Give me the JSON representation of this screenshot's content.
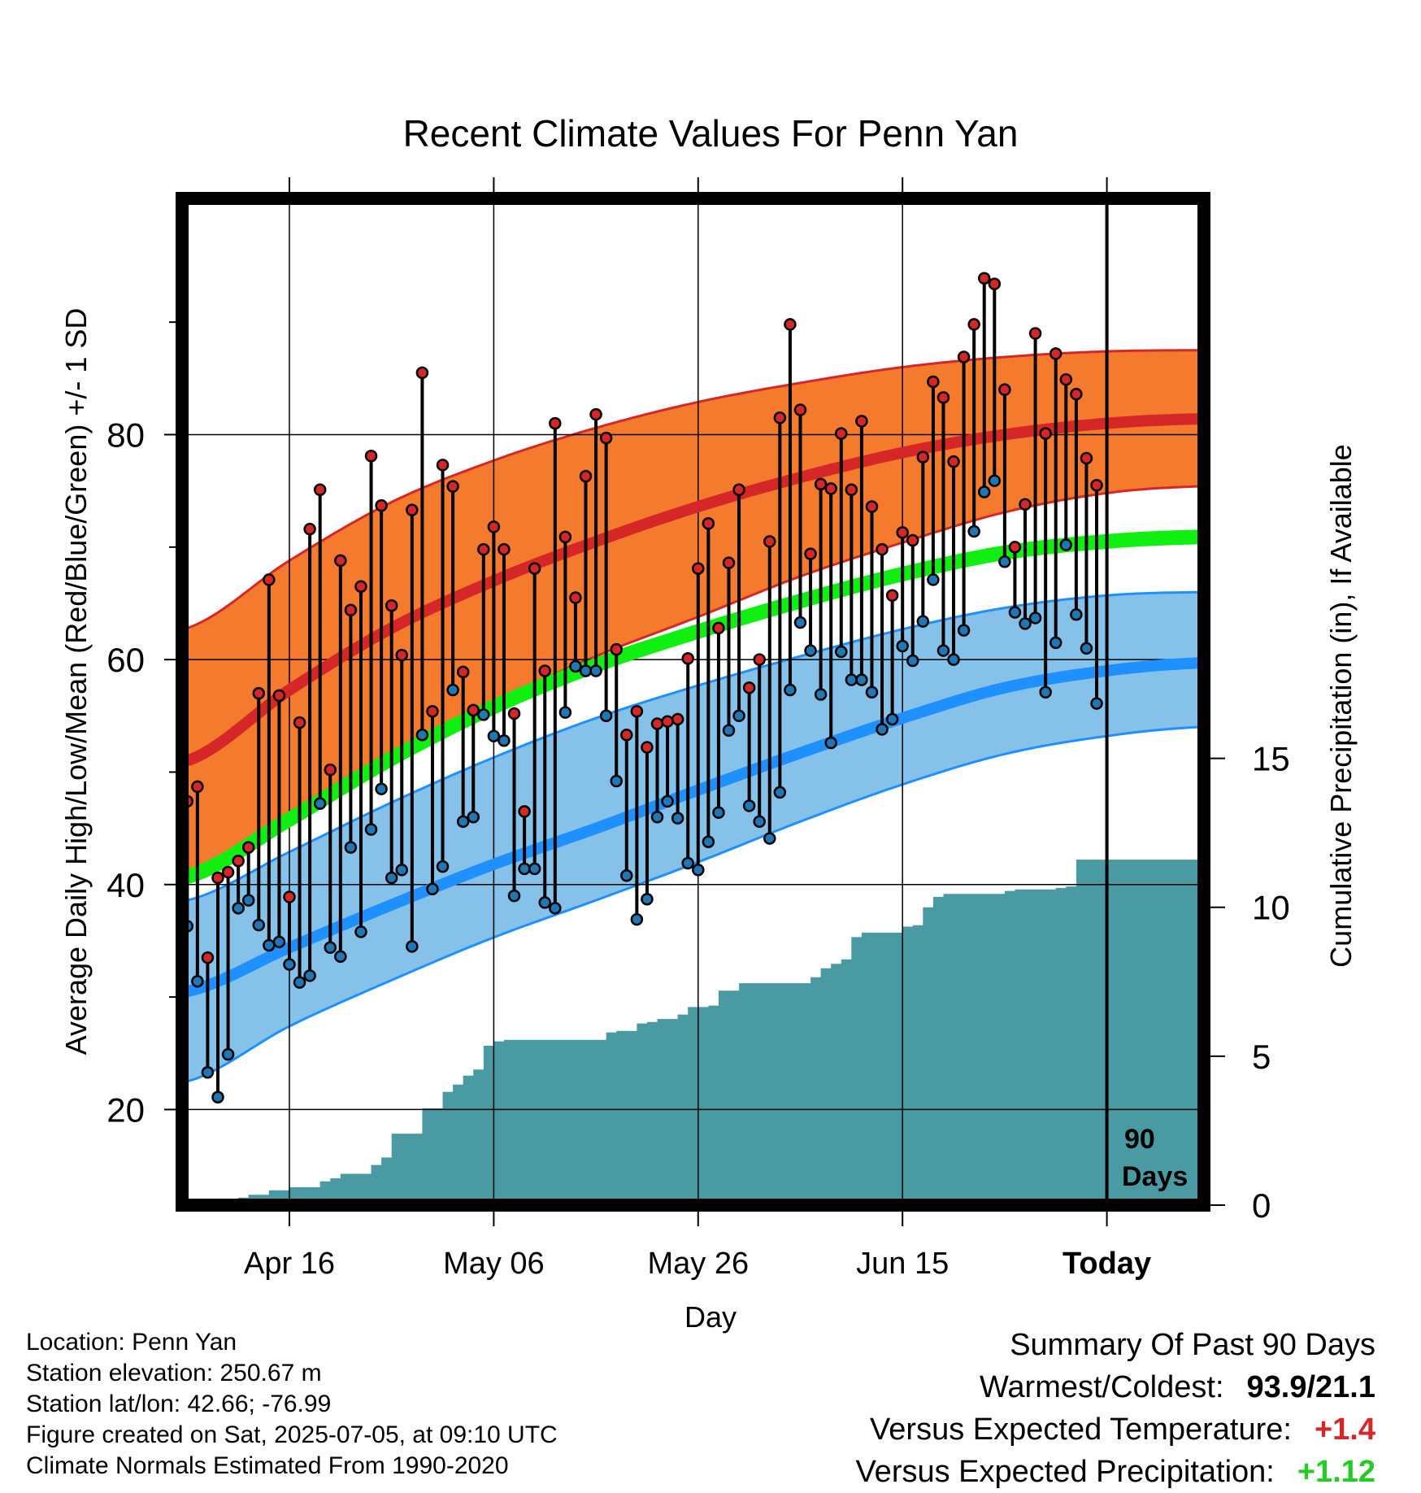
{
  "chart_data": {
    "type": "line",
    "title": "Recent Climate Values For Penn Yan",
    "xlabel": "Day",
    "ylabel": "Average Daily High/Low/Mean (Red/Blue/Green) +/- 1 SD",
    "y2label": "Cumulative Precipitation (in), If Available",
    "ylim": [
      11.5,
      101.0
    ],
    "y2lim": [
      0,
      33.8
    ],
    "y_ticks": [
      "20",
      "40",
      "60",
      "80"
    ],
    "y2_ticks": [
      "0",
      "5",
      "10",
      "15"
    ],
    "x_tick_labels": [
      "Apr 16",
      "May 06",
      "May 26",
      "Jun 15",
      "Today"
    ],
    "x_tick_days": [
      10,
      30,
      50,
      70,
      90
    ],
    "xlim": [
      -0.5,
      99.5
    ],
    "grid": true,
    "today_marker_label": [
      "90",
      "Days"
    ],
    "normals": {
      "days": [
        0,
        10,
        20,
        30,
        40,
        50,
        60,
        70,
        80,
        90,
        99
      ],
      "high_mean": [
        51.0,
        57.3,
        62.8,
        67.0,
        70.5,
        73.6,
        76.2,
        78.4,
        80.0,
        81.0,
        81.4
      ],
      "high_upper": [
        62.8,
        68.8,
        74.0,
        77.7,
        80.6,
        82.9,
        84.6,
        86.0,
        86.9,
        87.4,
        87.5
      ],
      "high_lower": [
        41.0,
        46.4,
        51.6,
        56.2,
        60.3,
        63.8,
        67.4,
        70.4,
        73.1,
        74.8,
        75.4
      ],
      "mean": [
        40.7,
        45.8,
        51.2,
        55.8,
        59.5,
        62.5,
        65.2,
        67.6,
        69.5,
        70.5,
        70.9
      ],
      "low_mean": [
        30.5,
        34.4,
        38.2,
        41.8,
        45.0,
        48.4,
        51.7,
        54.8,
        57.5,
        59.0,
        59.7
      ],
      "low_upper": [
        38.6,
        42.9,
        47.3,
        51.3,
        54.8,
        57.7,
        60.3,
        62.7,
        64.6,
        65.7,
        66.0
      ],
      "low_lower": [
        22.5,
        27.4,
        31.5,
        35.3,
        38.6,
        42.0,
        45.6,
        48.9,
        51.6,
        53.2,
        54.0
      ]
    },
    "series": [
      {
        "name": "High",
        "color": "#d62728",
        "values": [
          47.4,
          48.7,
          33.5,
          40.6,
          41.1,
          42.1,
          43.3,
          57.0,
          67.1,
          56.8,
          38.9,
          54.4,
          71.6,
          75.1,
          50.2,
          68.8,
          64.4,
          66.5,
          78.1,
          73.7,
          64.8,
          60.4,
          73.3,
          85.5,
          55.4,
          77.3,
          75.4,
          58.9,
          55.5,
          69.8,
          71.8,
          69.8,
          55.2,
          46.5,
          68.1,
          59.0,
          81.0,
          70.9,
          65.5,
          76.3,
          81.8,
          79.7,
          60.9,
          53.3,
          55.4,
          52.2,
          54.3,
          54.5,
          54.7,
          60.1,
          68.1,
          72.1,
          62.8,
          68.6,
          75.1,
          57.5,
          60.0,
          70.5,
          81.5,
          89.8,
          82.2,
          69.4,
          75.6,
          75.2,
          80.1,
          75.1,
          81.2,
          73.6,
          69.8,
          65.7,
          71.3,
          70.6,
          78.0,
          84.7,
          83.3,
          77.6,
          86.9,
          89.8,
          93.9,
          93.4,
          84.0,
          70.0,
          73.8,
          89.0,
          80.1,
          87.2,
          84.9,
          83.6,
          77.9,
          75.5
        ]
      },
      {
        "name": "Low",
        "color": "#1f77b4",
        "values": [
          36.3,
          31.4,
          23.3,
          21.1,
          24.9,
          37.9,
          38.6,
          36.4,
          34.6,
          34.9,
          32.9,
          31.3,
          31.9,
          47.2,
          34.4,
          33.6,
          43.3,
          35.8,
          44.9,
          48.5,
          40.6,
          41.3,
          34.5,
          53.3,
          39.6,
          41.6,
          57.3,
          45.6,
          46.0,
          55.1,
          53.2,
          52.8,
          39.0,
          41.4,
          41.4,
          38.4,
          37.9,
          55.3,
          59.4,
          59.0,
          59.0,
          55.0,
          49.2,
          40.8,
          36.9,
          38.7,
          46.0,
          47.4,
          45.9,
          41.9,
          41.3,
          43.8,
          46.4,
          53.7,
          55.0,
          47.0,
          45.6,
          44.1,
          48.2,
          57.3,
          63.3,
          60.8,
          56.9,
          52.6,
          60.7,
          58.2,
          58.2,
          57.1,
          53.8,
          54.7,
          61.2,
          59.9,
          63.4,
          67.1,
          60.8,
          60.0,
          62.6,
          71.4,
          74.9,
          75.9,
          68.7,
          64.2,
          63.2,
          63.7,
          57.1,
          61.5,
          70.2,
          64.0,
          61.0,
          56.1
        ]
      },
      {
        "name": "Cumulative Precipitation",
        "color": "#4a9aa3",
        "days": [
          0,
          3,
          4,
          5,
          6,
          8,
          10,
          12,
          13,
          14,
          15,
          17,
          18,
          19,
          20,
          21,
          22,
          23,
          24,
          25,
          26,
          27,
          28,
          29,
          30,
          31,
          32,
          40,
          41,
          42,
          44,
          45,
          46,
          48,
          49,
          51,
          52,
          54,
          55,
          60,
          61,
          62,
          63,
          64,
          65,
          66,
          70,
          71,
          72,
          73,
          74,
          80,
          81,
          85,
          86,
          87,
          99
        ],
        "values": [
          0.0,
          0.0,
          0.1,
          0.25,
          0.35,
          0.5,
          0.6,
          0.6,
          0.8,
          0.9,
          1.05,
          1.05,
          1.35,
          1.6,
          2.4,
          2.4,
          2.4,
          3.25,
          3.25,
          3.8,
          4.05,
          4.35,
          4.55,
          5.35,
          5.5,
          5.55,
          5.55,
          5.55,
          5.8,
          5.85,
          6.1,
          6.15,
          6.25,
          6.4,
          6.65,
          6.7,
          7.2,
          7.45,
          7.45,
          7.45,
          7.65,
          7.95,
          8.1,
          8.25,
          9.0,
          9.15,
          9.35,
          9.4,
          10.0,
          10.35,
          10.45,
          10.55,
          10.6,
          10.65,
          10.7,
          11.6,
          11.65
        ]
      }
    ]
  },
  "footer": {
    "location": "Location: Penn Yan",
    "elevation": "Station elevation: 250.67 m",
    "latlon": "Station lat/lon: 42.66; -76.99",
    "created": "Figure created on Sat, 2025-07-05, at 09:10 UTC",
    "normals_note": "Climate Normals Estimated From 1990-2020"
  },
  "summary": {
    "title": "Summary Of Past 90 Days",
    "warm_cold_label": "Warmest/Coldest:",
    "warm_cold_value": "93.9/21.1",
    "temp_label": "Versus Expected Temperature:",
    "temp_value": "+1.4",
    "temp_color": "#d62728",
    "precip_label": "Versus Expected Precipitation:",
    "precip_value": "+1.12",
    "precip_color": "#22cc22"
  },
  "colors": {
    "high_band": "#f47a2e",
    "high_line": "#d62728",
    "mean_line": "#11ee11",
    "low_band": "#85c1e9",
    "low_line": "#1e90ff",
    "precip_fill": "#4a9aa3",
    "frame": "#000000"
  }
}
